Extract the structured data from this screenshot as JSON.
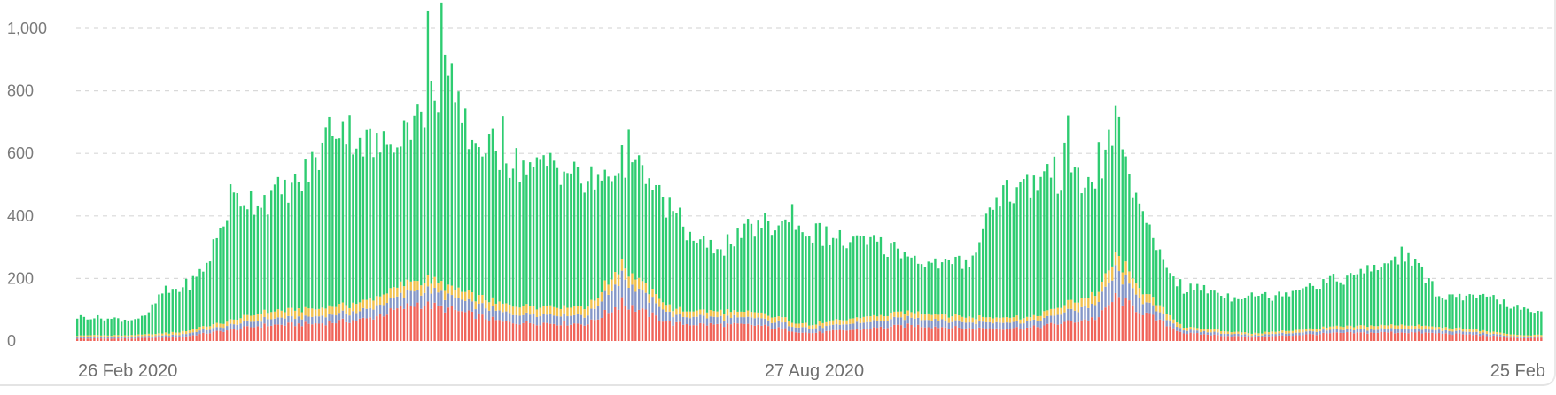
{
  "chart_data": {
    "type": "bar",
    "stacked": true,
    "x_start_label": "26 Feb 2020",
    "x_mid_label": "27 Aug 2020",
    "x_end_label": "25 Feb",
    "y_ticks": [
      0,
      200,
      400,
      600,
      800,
      1000
    ],
    "y_tick_labels": [
      "0",
      "200",
      "400",
      "600",
      "800",
      "1,000"
    ],
    "ylim": [
      0,
      1050
    ],
    "grid": true,
    "colors": {
      "red": "#f0645a",
      "blue": "#8597c8",
      "yellow": "#f2c14e",
      "green": "#2ecc71"
    },
    "series": [
      {
        "color": "red",
        "knots": [
          [
            0,
            8
          ],
          [
            15,
            8
          ],
          [
            30,
            12
          ],
          [
            40,
            28
          ],
          [
            55,
            50
          ],
          [
            70,
            55
          ],
          [
            85,
            70
          ],
          [
            100,
            120
          ],
          [
            110,
            100
          ],
          [
            125,
            60
          ],
          [
            150,
            55
          ],
          [
            160,
            120
          ],
          [
            175,
            55
          ],
          [
            200,
            50
          ],
          [
            215,
            25
          ],
          [
            245,
            50
          ],
          [
            262,
            40
          ],
          [
            280,
            42
          ],
          [
            300,
            75
          ],
          [
            305,
            140
          ],
          [
            315,
            80
          ],
          [
            325,
            25
          ],
          [
            345,
            12
          ],
          [
            370,
            25
          ],
          [
            390,
            28
          ],
          [
            410,
            20
          ],
          [
            425,
            8
          ],
          [
            430,
            10
          ]
        ]
      },
      {
        "color": "blue",
        "knots": [
          [
            0,
            5
          ],
          [
            15,
            5
          ],
          [
            30,
            8
          ],
          [
            40,
            12
          ],
          [
            55,
            20
          ],
          [
            70,
            22
          ],
          [
            85,
            28
          ],
          [
            100,
            45
          ],
          [
            110,
            40
          ],
          [
            125,
            30
          ],
          [
            150,
            28
          ],
          [
            160,
            80
          ],
          [
            175,
            25
          ],
          [
            200,
            22
          ],
          [
            215,
            15
          ],
          [
            245,
            25
          ],
          [
            262,
            20
          ],
          [
            280,
            18
          ],
          [
            300,
            45
          ],
          [
            305,
            80
          ],
          [
            315,
            30
          ],
          [
            325,
            10
          ],
          [
            345,
            6
          ],
          [
            370,
            10
          ],
          [
            390,
            12
          ],
          [
            410,
            8
          ],
          [
            425,
            4
          ],
          [
            430,
            4
          ]
        ]
      },
      {
        "color": "yellow",
        "knots": [
          [
            0,
            5
          ],
          [
            15,
            5
          ],
          [
            30,
            8
          ],
          [
            40,
            12
          ],
          [
            55,
            22
          ],
          [
            70,
            25
          ],
          [
            85,
            28
          ],
          [
            100,
            35
          ],
          [
            110,
            30
          ],
          [
            125,
            25
          ],
          [
            150,
            25
          ],
          [
            160,
            40
          ],
          [
            175,
            20
          ],
          [
            200,
            18
          ],
          [
            215,
            12
          ],
          [
            245,
            20
          ],
          [
            262,
            18
          ],
          [
            280,
            15
          ],
          [
            300,
            35
          ],
          [
            305,
            45
          ],
          [
            315,
            25
          ],
          [
            325,
            10
          ],
          [
            345,
            6
          ],
          [
            370,
            10
          ],
          [
            390,
            12
          ],
          [
            410,
            8
          ],
          [
            425,
            5
          ],
          [
            430,
            5
          ]
        ]
      },
      {
        "color": "green",
        "knots": [
          [
            0,
            60
          ],
          [
            15,
            50
          ],
          [
            20,
            55
          ],
          [
            25,
            130
          ],
          [
            30,
            140
          ],
          [
            35,
            160
          ],
          [
            38,
            200
          ],
          [
            42,
            300
          ],
          [
            45,
            390
          ],
          [
            55,
            360
          ],
          [
            65,
            400
          ],
          [
            70,
            470
          ],
          [
            75,
            590
          ],
          [
            80,
            560
          ],
          [
            85,
            500
          ],
          [
            90,
            470
          ],
          [
            100,
            520
          ],
          [
            105,
            610
          ],
          [
            110,
            640
          ],
          [
            115,
            500
          ],
          [
            125,
            470
          ],
          [
            135,
            440
          ],
          [
            140,
            470
          ],
          [
            150,
            390
          ],
          [
            160,
            320
          ],
          [
            165,
            350
          ],
          [
            175,
            310
          ],
          [
            180,
            240
          ],
          [
            185,
            200
          ],
          [
            192,
            220
          ],
          [
            200,
            280
          ],
          [
            208,
            300
          ],
          [
            215,
            300
          ],
          [
            225,
            250
          ],
          [
            235,
            230
          ],
          [
            245,
            180
          ],
          [
            250,
            160
          ],
          [
            260,
            170
          ],
          [
            262,
            180
          ],
          [
            265,
            250
          ],
          [
            270,
            400
          ],
          [
            280,
            420
          ],
          [
            285,
            450
          ],
          [
            290,
            400
          ],
          [
            300,
            350
          ],
          [
            305,
            440
          ],
          [
            310,
            290
          ],
          [
            315,
            200
          ],
          [
            320,
            150
          ],
          [
            325,
            120
          ],
          [
            330,
            130
          ],
          [
            340,
            110
          ],
          [
            345,
            130
          ],
          [
            350,
            110
          ],
          [
            360,
            140
          ],
          [
            370,
            150
          ],
          [
            375,
            160
          ],
          [
            385,
            200
          ],
          [
            390,
            230
          ],
          [
            395,
            170
          ],
          [
            400,
            100
          ],
          [
            410,
            100
          ],
          [
            415,
            110
          ],
          [
            425,
            80
          ],
          [
            430,
            70
          ]
        ]
      }
    ],
    "bar_count": 431,
    "spikes": [
      {
        "index": 103,
        "series": "green",
        "value": 845
      },
      {
        "index": 107,
        "series": "green",
        "value": 890
      },
      {
        "index": 108,
        "series": "green",
        "value": 755
      },
      {
        "index": 111,
        "series": "green",
        "value": 600
      },
      {
        "index": 125,
        "series": "green",
        "value": 600
      },
      {
        "index": 160,
        "series": "red",
        "value": 140
      },
      {
        "index": 162,
        "series": "green",
        "value": 470
      },
      {
        "index": 210,
        "series": "green",
        "value": 380
      },
      {
        "index": 290,
        "series": "green",
        "value": 520
      },
      {
        "index": 291,
        "series": "green",
        "value": 590
      },
      {
        "index": 300,
        "series": "green",
        "value": 480
      }
    ]
  }
}
